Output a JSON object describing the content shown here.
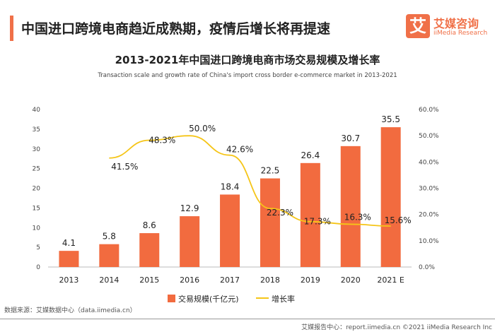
{
  "header": {
    "headline": "中国进口跨境电商趋近成熟期，疫情后增长将再提速",
    "logo_mark": "艾",
    "logo_cn": "艾媒咨询",
    "logo_en": "iiMedia Research"
  },
  "footer": {
    "source": "数据来源：艾媒数据中心（data.iimedia.cn）",
    "report": "艾媒报告中心：report.iimedia.cn  ©2021  iiMedia Research Inc"
  },
  "chart_data": {
    "type": "bar+line",
    "title": "2013-2021年中国进口跨境电商市场交易规模及增长率",
    "subtitle": "Transaction scale and growth rate of China's import cross border e-commerce market in 2013-2021",
    "categories": [
      "2013",
      "2014",
      "2015",
      "2016",
      "2017",
      "2018",
      "2019",
      "2020",
      "2021 E"
    ],
    "series": [
      {
        "name": "交易规模(千亿元)",
        "type": "bar",
        "axis": "left",
        "color": "#f26b3f",
        "values": [
          4.1,
          5.8,
          8.6,
          12.9,
          18.4,
          22.5,
          26.4,
          30.7,
          35.5
        ],
        "labels": [
          "4.1",
          "5.8",
          "8.6",
          "12.9",
          "18.4",
          "22.5",
          "26.4",
          "30.7",
          "35.5"
        ]
      },
      {
        "name": "增长率",
        "type": "line",
        "axis": "right",
        "color": "#f5c518",
        "values": [
          null,
          41.5,
          48.3,
          50.0,
          42.6,
          22.3,
          17.3,
          16.3,
          15.6
        ],
        "labels": [
          null,
          "41.5%",
          "48.3%",
          "50.0%",
          "42.6%",
          "22.3%",
          "17.3%",
          "16.3%",
          "15.6%"
        ]
      }
    ],
    "y_left": {
      "range": [
        0,
        40
      ],
      "ticks": [
        "0",
        "5",
        "10",
        "15",
        "20",
        "25",
        "30",
        "35",
        "40"
      ]
    },
    "y_right": {
      "range": [
        0,
        60
      ],
      "ticks": [
        "0.0%",
        "10.0%",
        "20.0%",
        "30.0%",
        "40.0%",
        "50.0%",
        "60.0%"
      ]
    },
    "grid": false,
    "legend": "bottom"
  }
}
